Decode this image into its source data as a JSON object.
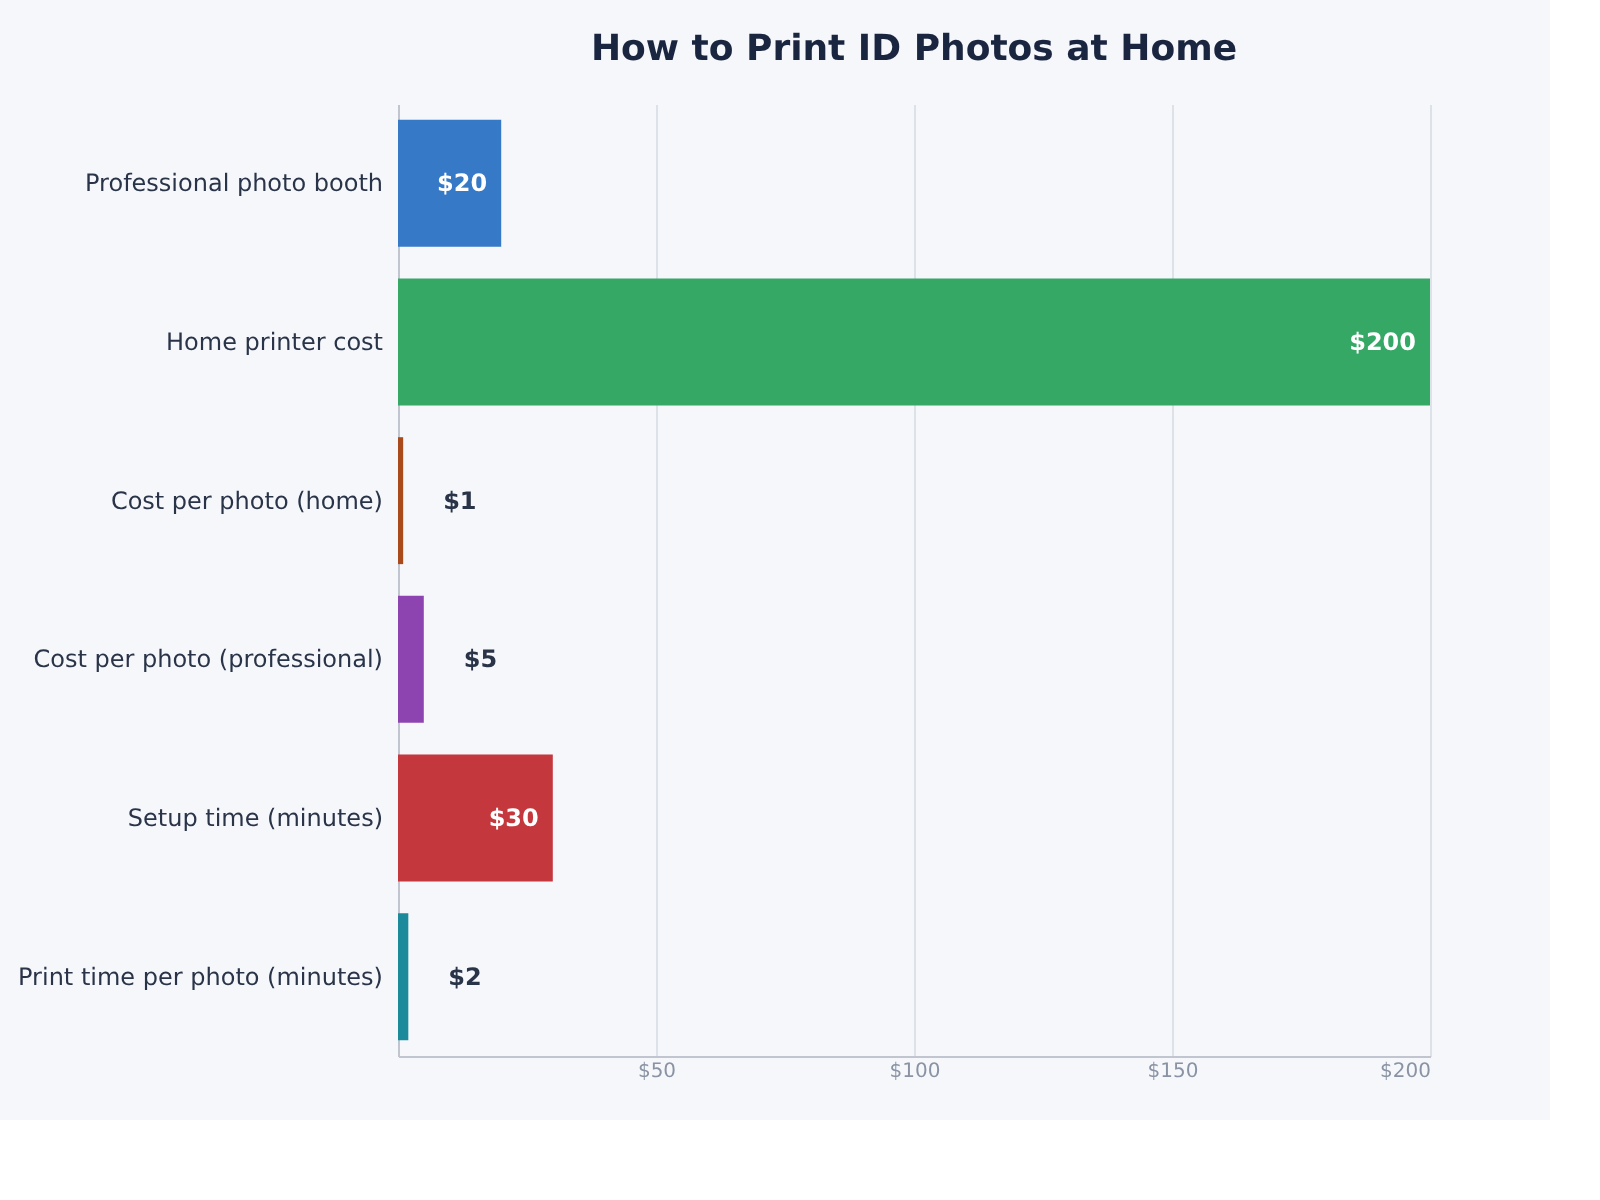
{
  "chart_data": {
    "type": "bar",
    "orientation": "horizontal",
    "title": "How to Print ID Photos at Home",
    "categories": [
      "Professional photo booth",
      "Home printer cost",
      "Cost per photo (home)",
      "Cost per photo (professional)",
      "Setup time (minutes)",
      "Print time per photo (minutes)"
    ],
    "values": [
      20,
      200,
      1,
      5,
      30,
      2
    ],
    "colors": [
      "#3679c6",
      "#36a865",
      "#a84a1c",
      "#8e44b0",
      "#c4373d",
      "#1b8a9a"
    ],
    "value_labels": [
      "$20",
      "$200",
      "$1",
      "$5",
      "$30",
      "$2"
    ],
    "xlim": [
      0,
      200
    ],
    "xticks": [
      {
        "value": 50,
        "label": "$50"
      },
      {
        "value": 100,
        "label": "$100"
      },
      {
        "value": 150,
        "label": "$150"
      },
      {
        "value": 200,
        "label": "$200"
      }
    ],
    "grid": "x"
  }
}
